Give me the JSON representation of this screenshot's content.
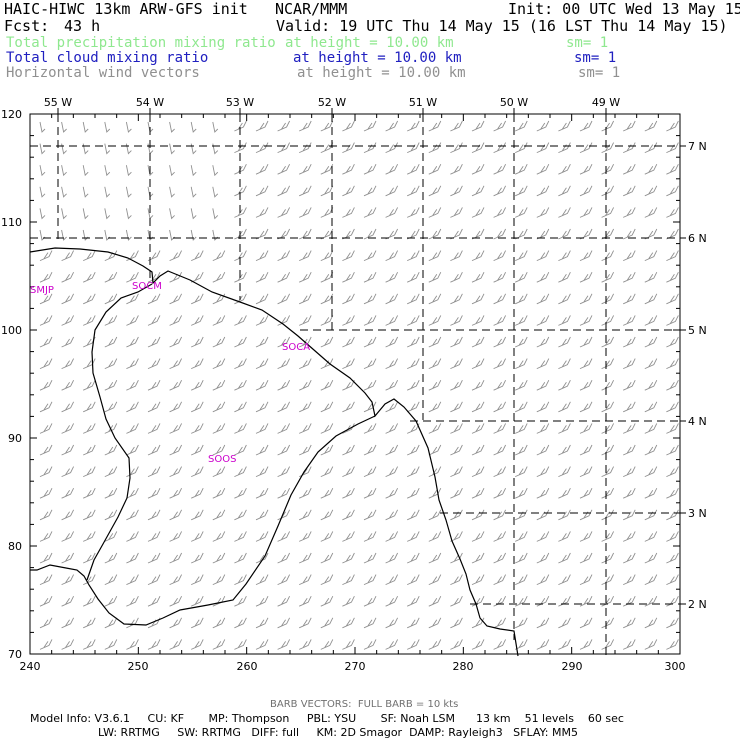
{
  "header": {
    "model": "HAIC-HIWC 13km ARW-GFS init",
    "org": "NCAR/MMM",
    "init": "Init: 00 UTC Wed 13 May 15",
    "fcst_label": "Fcst:",
    "fcst_value": "43 h",
    "valid": "Valid: 19 UTC Thu 14 May 15 (16 LST Thu 14 May 15)"
  },
  "fields": [
    {
      "name": "Total precipitation mixing ratio",
      "height": "at height = 10.00 km",
      "sm": "sm= 1",
      "color": "#8fe88f"
    },
    {
      "name": "Total cloud mixing ratio",
      "height": "at height = 10.00 km",
      "sm": "sm= 1",
      "color": "#2020c0"
    },
    {
      "name": "Horizontal wind vectors",
      "height": "at height = 10.00 km",
      "sm": "sm= 1",
      "color": "#909090"
    }
  ],
  "map": {
    "x_ticks": [
      "240",
      "250",
      "260",
      "270",
      "280",
      "290",
      "300"
    ],
    "y_ticks": [
      "70",
      "80",
      "90",
      "100",
      "110",
      "120"
    ],
    "lon_labels": [
      "55 W",
      "54 W",
      "53 W",
      "52 W",
      "51 W",
      "50 W",
      "49 W"
    ],
    "lat_labels": [
      "7 N",
      "6 N",
      "5 N",
      "4 N",
      "3 N",
      "2 N"
    ],
    "stations": [
      "SMJP",
      "SOCM",
      "SOCA",
      "SOOS"
    ],
    "coastline_color": "#000000",
    "barb_color": "#909090",
    "station_color": "#cc00cc"
  },
  "footer": {
    "barb_note": "BARB VECTORS:  FULL BARB = 10 kts",
    "model_info": "Model Info: V3.6.1     CU: KF       MP: Thompson     PBL: YSU       SF: Noah LSM      13 km    51 levels    60 sec",
    "model_info2": "LW: RRTMG     SW: RRTMG   DIFF: full     KM: 2D Smagor  DAMP: Rayleigh3   SFLAY: MM5"
  }
}
